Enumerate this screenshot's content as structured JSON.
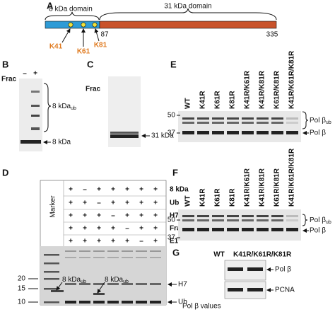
{
  "panel_a": {
    "letter": "A",
    "left_domain": "8 kDa domain",
    "right_domain": "31 kDa domain",
    "boundary": "87",
    "end": "335",
    "sites": [
      "K41",
      "K61",
      "K81"
    ]
  },
  "panel_b": {
    "letter": "B",
    "frac_label": "Frac",
    "lanes": [
      "–",
      "+"
    ],
    "band_upper": "8 kDa",
    "band_upper_sub": "ub",
    "band_lower": "8 kDa"
  },
  "panel_c": {
    "letter": "C",
    "frac_label": "Frac",
    "lanes": [
      "–",
      "+"
    ],
    "band": "31 kDa"
  },
  "panel_d": {
    "letter": "D",
    "marker_label": "Marker",
    "conditions": [
      {
        "label": "8 kDa",
        "signs": [
          "+",
          "–",
          "+",
          "+",
          "+",
          "+",
          "+"
        ]
      },
      {
        "label": "Ub",
        "signs": [
          "+",
          "+",
          "–",
          "+",
          "+",
          "+",
          "+"
        ]
      },
      {
        "label": "H7",
        "signs": [
          "+",
          "+",
          "+",
          "–",
          "+",
          "+",
          "+"
        ]
      },
      {
        "label": "Fraction",
        "signs": [
          "+",
          "+",
          "+",
          "+",
          "–",
          "+",
          "+"
        ]
      },
      {
        "label": "E1",
        "signs": [
          "+",
          "+",
          "+",
          "+",
          "+",
          "–",
          "+"
        ]
      }
    ],
    "mw": [
      "20",
      "15",
      "10"
    ],
    "band_ub_left": "8 kDa",
    "band_ub_left_sub": "ub",
    "band_ub_right": "8 kDa",
    "band_ub_right_sub": "ub",
    "band_h7": "H7",
    "band_ub": "Ub"
  },
  "panel_e": {
    "letter": "E",
    "lanes": [
      "WT",
      "K41R",
      "K61R",
      "K81R",
      "K41R/K61R",
      "K41R/K81R",
      "K61R/K81R",
      "K41R/K61R/K81R"
    ],
    "mw": [
      "50",
      "37"
    ],
    "band_ub": "Pol β",
    "band_ub_sub": "ub",
    "band": "Pol β"
  },
  "panel_f": {
    "letter": "F",
    "lanes": [
      "WT",
      "K41R",
      "K61R",
      "K81R",
      "K41R/K61R",
      "K41R/K81R",
      "K61R/K81R",
      "K41R/K61R/K81R"
    ],
    "mw": [
      "50",
      "37"
    ],
    "band_ub": "Pol β",
    "band_ub_sub": "ub",
    "band": "Pol β"
  },
  "panel_g": {
    "letter": "G",
    "lanes": [
      "WT",
      "K41R/K61R/K81R"
    ],
    "band_top": "Pol β",
    "band_bottom": "PCNA",
    "footer": "Pol β values"
  }
}
